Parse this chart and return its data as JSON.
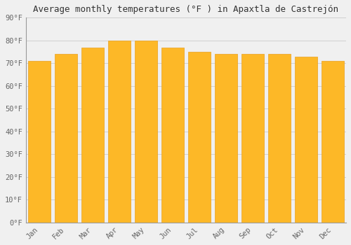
{
  "title": "Average monthly temperatures (°F ) in Apaxtla de Castrejón",
  "months": [
    "Jan",
    "Feb",
    "Mar",
    "Apr",
    "May",
    "Jun",
    "Jul",
    "Aug",
    "Sep",
    "Oct",
    "Nov",
    "Dec"
  ],
  "values": [
    71,
    74,
    77,
    80,
    80,
    77,
    75,
    74,
    74,
    74,
    73,
    71
  ],
  "bar_color": "#FDB827",
  "bar_edge_color": "#E8A020",
  "background_color": "#F0F0F0",
  "grid_color": "#CCCCCC",
  "ylim": [
    0,
    90
  ],
  "yticks": [
    0,
    10,
    20,
    30,
    40,
    50,
    60,
    70,
    80,
    90
  ],
  "ytick_labels": [
    "0°F",
    "10°F",
    "20°F",
    "30°F",
    "40°F",
    "50°F",
    "60°F",
    "70°F",
    "80°F",
    "90°F"
  ],
  "title_fontsize": 9,
  "tick_fontsize": 7.5,
  "font_family": "monospace",
  "bar_width": 0.85
}
